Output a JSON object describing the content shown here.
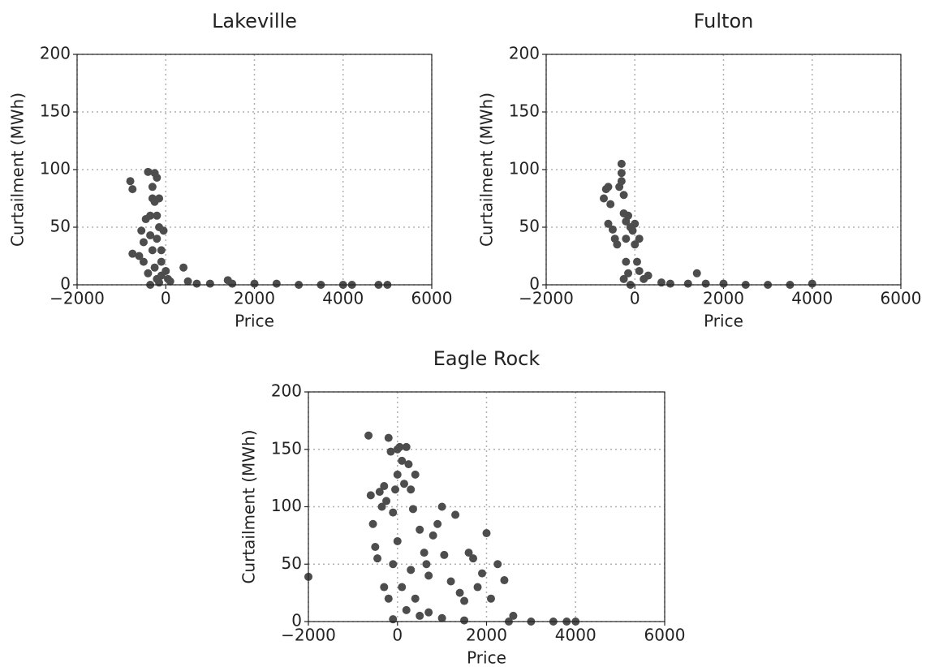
{
  "chart_data": [
    {
      "type": "scatter",
      "title": "Lakeville",
      "x_label": "Price",
      "y_label": "Curtailment (MWh)",
      "color": "#4d4d4d",
      "grid": true,
      "xlim": [
        -2000,
        6000
      ],
      "ylim": [
        0,
        200
      ],
      "xticks": [
        {
          "value": -2000,
          "label": "−2000"
        },
        0,
        2000,
        4000,
        6000
      ],
      "yticks": [
        0,
        50,
        100,
        150,
        200
      ],
      "x": [
        -800,
        -750,
        -750,
        -600,
        -550,
        -500,
        -450,
        -400,
        -350,
        -350,
        -300,
        -300,
        -250,
        -250,
        -200,
        -200,
        -200,
        -150,
        -150,
        -100,
        -100,
        -50,
        0,
        50,
        -300,
        -250,
        -200,
        -100,
        100,
        400,
        500,
        1400,
        700,
        1000,
        1500,
        2000,
        2500,
        3000,
        3500,
        4000,
        4200,
        4800,
        5000,
        -500,
        -400,
        -150,
        -350
      ],
      "y": [
        90,
        83,
        27,
        25,
        47,
        37,
        57,
        98,
        60,
        43,
        75,
        85,
        97,
        72,
        93,
        60,
        40,
        75,
        50,
        30,
        20,
        47,
        12,
        5,
        30,
        15,
        5,
        8,
        3,
        15,
        3,
        4,
        1,
        1,
        1,
        1,
        1,
        0,
        0,
        0,
        0,
        0,
        0,
        20,
        10,
        2,
        0
      ]
    },
    {
      "type": "scatter",
      "title": "Fulton",
      "x_label": "Price",
      "y_label": "Curtailment (MWh)",
      "color": "#4d4d4d",
      "grid": true,
      "xlim": [
        -2000,
        6000
      ],
      "ylim": [
        0,
        200
      ],
      "xticks": [
        {
          "value": -2000,
          "label": "−2000"
        },
        0,
        2000,
        4000,
        6000
      ],
      "yticks": [
        0,
        50,
        100,
        150,
        200
      ],
      "x": [
        -700,
        -650,
        -600,
        -600,
        -550,
        -500,
        -450,
        -400,
        -350,
        -300,
        -300,
        -300,
        -250,
        -250,
        -200,
        -200,
        -150,
        -100,
        -50,
        0,
        0,
        50,
        100,
        100,
        200,
        300,
        -200,
        -150,
        -250,
        1400,
        600,
        800,
        1200,
        1600,
        2000,
        2500,
        3000,
        3500,
        4000,
        -100
      ],
      "y": [
        75,
        83,
        85,
        53,
        70,
        48,
        40,
        35,
        85,
        105,
        97,
        90,
        78,
        62,
        55,
        40,
        60,
        50,
        47,
        53,
        35,
        20,
        12,
        40,
        5,
        8,
        20,
        10,
        5,
        10,
        2,
        1,
        1,
        1,
        1,
        0,
        0,
        0,
        1,
        0
      ]
    },
    {
      "type": "scatter",
      "title": "Eagle Rock",
      "x_label": "Price",
      "y_label": "Curtailment (MWh)",
      "color": "#4d4d4d",
      "grid": true,
      "xlim": [
        -2000,
        6000
      ],
      "ylim": [
        0,
        200
      ],
      "xticks": [
        {
          "value": -2000,
          "label": "−2000"
        },
        0,
        2000,
        4000,
        6000
      ],
      "yticks": [
        0,
        50,
        100,
        150,
        200
      ],
      "x": [
        -2000,
        -650,
        -600,
        -550,
        -500,
        -450,
        -400,
        -350,
        -300,
        -250,
        -200,
        -150,
        -100,
        -50,
        0,
        0,
        50,
        100,
        150,
        200,
        250,
        300,
        350,
        400,
        500,
        600,
        650,
        700,
        800,
        900,
        1000,
        1050,
        1200,
        1300,
        1400,
        1500,
        1600,
        1700,
        1800,
        1900,
        2000,
        2100,
        2250,
        2400,
        2600,
        -300,
        -200,
        -100,
        0,
        100,
        200,
        300,
        400,
        500,
        -100,
        700,
        1000,
        1500,
        2500,
        3000,
        3500,
        3800,
        4000
      ],
      "y": [
        39,
        162,
        110,
        85,
        65,
        55,
        113,
        100,
        118,
        105,
        160,
        148,
        95,
        115,
        150,
        128,
        152,
        140,
        120,
        152,
        137,
        115,
        98,
        128,
        80,
        60,
        50,
        40,
        75,
        85,
        100,
        58,
        35,
        93,
        25,
        18,
        60,
        55,
        30,
        42,
        77,
        20,
        50,
        36,
        5,
        30,
        20,
        50,
        70,
        30,
        10,
        45,
        20,
        5,
        2,
        8,
        3,
        1,
        0,
        0,
        0,
        0,
        0
      ]
    }
  ]
}
